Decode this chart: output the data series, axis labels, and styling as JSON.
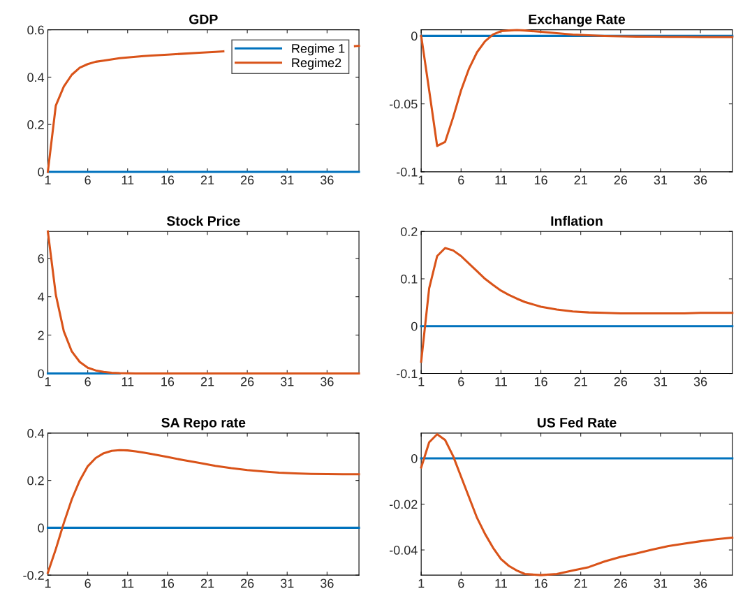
{
  "chart_data": [
    {
      "type": "line",
      "title": "GDP",
      "x": [
        1,
        2,
        3,
        4,
        5,
        6,
        7,
        8,
        9,
        10,
        11,
        12,
        13,
        14,
        16,
        18,
        20,
        22,
        24,
        26,
        28,
        30,
        32,
        34,
        36,
        38,
        40
      ],
      "xlim": [
        1,
        40
      ],
      "xticks": [
        1,
        6,
        11,
        16,
        21,
        26,
        31,
        36
      ],
      "ylim": [
        0,
        0.6
      ],
      "yticks": [
        0,
        0.2,
        0.4,
        0.6
      ],
      "legend": "top right",
      "series": [
        {
          "name": "Regime 1",
          "color": "#0072bd",
          "values": [
            0,
            0,
            0,
            0,
            0,
            0,
            0,
            0,
            0,
            0,
            0,
            0,
            0,
            0,
            0,
            0,
            0,
            0,
            0,
            0,
            0,
            0,
            0,
            0,
            0,
            0,
            0
          ]
        },
        {
          "name": "Regime2",
          "color": "#d95319",
          "x": [
            1,
            2,
            3,
            4,
            5,
            6,
            7,
            8,
            9,
            10,
            11,
            12,
            13,
            14,
            16,
            18,
            20,
            22,
            23,
            24,
            26,
            28,
            30,
            32,
            34,
            36,
            38,
            39.5,
            40
          ],
          "values": [
            0,
            0.28,
            0.36,
            0.41,
            0.44,
            0.455,
            0.465,
            0.47,
            0.475,
            0.48,
            0.483,
            0.486,
            0.489,
            0.491,
            0.495,
            0.499,
            0.503,
            0.507,
            0.509,
            null,
            null,
            null,
            null,
            null,
            null,
            null,
            null,
            0.531,
            0.532
          ]
        }
      ]
    },
    {
      "type": "line",
      "title": "Exchange Rate",
      "x": [
        1,
        2,
        3,
        4,
        5,
        6,
        7,
        8,
        9,
        10,
        11,
        12,
        13,
        14,
        16,
        18,
        20,
        22,
        24,
        26,
        28,
        30,
        32,
        34,
        36,
        38,
        40
      ],
      "xlim": [
        1,
        40
      ],
      "xticks": [
        1,
        6,
        11,
        16,
        21,
        26,
        31,
        36
      ],
      "ylim": [
        -0.1,
        0.0045
      ],
      "yticks": [
        -0.1,
        -0.05,
        0
      ],
      "series": [
        {
          "color": "#0072bd",
          "values": [
            0,
            0,
            0,
            0,
            0,
            0,
            0,
            0,
            0,
            0,
            0,
            0,
            0,
            0,
            0,
            0,
            0,
            0,
            0,
            0,
            0,
            0,
            0,
            0,
            0,
            0,
            0
          ]
        },
        {
          "color": "#d95319",
          "values": [
            0,
            -0.04,
            -0.081,
            -0.078,
            -0.06,
            -0.04,
            -0.024,
            -0.012,
            -0.004,
            0.001,
            0.0035,
            0.004,
            0.0043,
            0.004,
            0.003,
            0.002,
            0.001,
            0.0005,
            0,
            -0.0003,
            -0.0005,
            -0.0006,
            -0.0007,
            -0.0007,
            -0.0008,
            -0.0008,
            -0.0008
          ]
        }
      ]
    },
    {
      "type": "line",
      "title": "Stock Price",
      "x": [
        1,
        2,
        3,
        4,
        5,
        6,
        7,
        8,
        9,
        10,
        11,
        12,
        13,
        14,
        16,
        18,
        20,
        22,
        24,
        26,
        28,
        30,
        32,
        34,
        36,
        38,
        40
      ],
      "xlim": [
        1,
        40
      ],
      "xticks": [
        1,
        6,
        11,
        16,
        21,
        26,
        31,
        36
      ],
      "ylim": [
        0,
        7.4
      ],
      "yticks": [
        0,
        2,
        4,
        6
      ],
      "series": [
        {
          "color": "#0072bd",
          "values": [
            0,
            0,
            0,
            0,
            0,
            0,
            0,
            0,
            0,
            0,
            null,
            null,
            null,
            null,
            null,
            null,
            null,
            null,
            null,
            null,
            null,
            null,
            null,
            null,
            null,
            null,
            null
          ]
        },
        {
          "color": "#d95319",
          "values": [
            7.4,
            4.1,
            2.2,
            1.15,
            0.6,
            0.3,
            0.16,
            0.08,
            0.04,
            0.02,
            0.01,
            0,
            0,
            0,
            0,
            0,
            0,
            0,
            0,
            0,
            0,
            0,
            0,
            0,
            0,
            0,
            0
          ]
        }
      ]
    },
    {
      "type": "line",
      "title": "Inflation",
      "x": [
        1,
        2,
        3,
        4,
        5,
        6,
        7,
        8,
        9,
        10,
        11,
        12,
        13,
        14,
        16,
        18,
        20,
        22,
        24,
        26,
        28,
        30,
        32,
        34,
        36,
        38,
        40
      ],
      "xlim": [
        1,
        40
      ],
      "xticks": [
        1,
        6,
        11,
        16,
        21,
        26,
        31,
        36
      ],
      "ylim": [
        -0.1,
        0.2
      ],
      "yticks": [
        -0.1,
        0,
        0.1,
        0.2
      ],
      "series": [
        {
          "color": "#0072bd",
          "values": [
            0,
            0,
            0,
            0,
            0,
            0,
            0,
            0,
            0,
            0,
            0,
            0,
            0,
            0,
            0,
            0,
            0,
            0,
            0,
            0,
            0,
            0,
            0,
            0,
            0,
            0,
            0
          ]
        },
        {
          "color": "#d95319",
          "values": [
            -0.075,
            0.08,
            0.148,
            0.165,
            0.16,
            0.148,
            0.132,
            0.116,
            0.1,
            0.087,
            0.075,
            0.066,
            0.058,
            0.051,
            0.041,
            0.035,
            0.031,
            0.029,
            0.028,
            0.027,
            0.027,
            0.027,
            0.027,
            0.027,
            0.028,
            0.028,
            0.028
          ]
        }
      ]
    },
    {
      "type": "line",
      "title": "SA Repo rate",
      "x": [
        1,
        2,
        3,
        4,
        5,
        6,
        7,
        8,
        9,
        10,
        11,
        12,
        13,
        14,
        16,
        18,
        20,
        22,
        24,
        26,
        28,
        30,
        32,
        34,
        36,
        38,
        40
      ],
      "xlim": [
        1,
        40
      ],
      "xticks": [
        1,
        6,
        11,
        16,
        21,
        26,
        31,
        36
      ],
      "ylim": [
        -0.2,
        0.4
      ],
      "yticks": [
        -0.2,
        0,
        0.2,
        0.4
      ],
      "series": [
        {
          "color": "#0072bd",
          "values": [
            0,
            0,
            0,
            0,
            0,
            0,
            0,
            0,
            0,
            0,
            0,
            0,
            0,
            0,
            0,
            0,
            0,
            0,
            0,
            0,
            0,
            0,
            0,
            0,
            0,
            0,
            0
          ]
        },
        {
          "color": "#d95319",
          "values": [
            -0.19,
            -0.09,
            0.02,
            0.12,
            0.2,
            0.26,
            0.295,
            0.315,
            0.325,
            0.328,
            0.327,
            0.323,
            0.318,
            0.312,
            0.299,
            0.286,
            0.274,
            0.262,
            0.252,
            0.244,
            0.238,
            0.233,
            0.23,
            0.228,
            0.227,
            0.226,
            0.226
          ]
        }
      ]
    },
    {
      "type": "line",
      "title": "US Fed Rate",
      "x": [
        1,
        2,
        3,
        4,
        5,
        6,
        7,
        8,
        9,
        10,
        11,
        12,
        13,
        14,
        16,
        18,
        20,
        22,
        24,
        26,
        28,
        30,
        32,
        34,
        36,
        38,
        40
      ],
      "xlim": [
        1,
        40
      ],
      "xticks": [
        1,
        6,
        11,
        16,
        21,
        26,
        31,
        36
      ],
      "ylim": [
        -0.051,
        0.011
      ],
      "yticks": [
        -0.04,
        -0.02,
        0
      ],
      "series": [
        {
          "color": "#0072bd",
          "values": [
            0,
            0,
            0,
            0,
            0,
            0,
            0,
            0,
            0,
            0,
            0,
            0,
            0,
            0,
            0,
            0,
            0,
            0,
            0,
            0,
            0,
            0,
            0,
            0,
            0,
            0,
            0
          ]
        },
        {
          "color": "#d95319",
          "values": [
            -0.004,
            0.007,
            0.0105,
            0.008,
            0.001,
            -0.008,
            -0.017,
            -0.026,
            -0.033,
            -0.039,
            -0.044,
            -0.047,
            -0.049,
            -0.0505,
            -0.051,
            -0.0505,
            -0.049,
            -0.0475,
            -0.045,
            -0.043,
            -0.0415,
            -0.0398,
            -0.0383,
            -0.0372,
            -0.0362,
            -0.0353,
            -0.0346
          ]
        }
      ]
    }
  ]
}
